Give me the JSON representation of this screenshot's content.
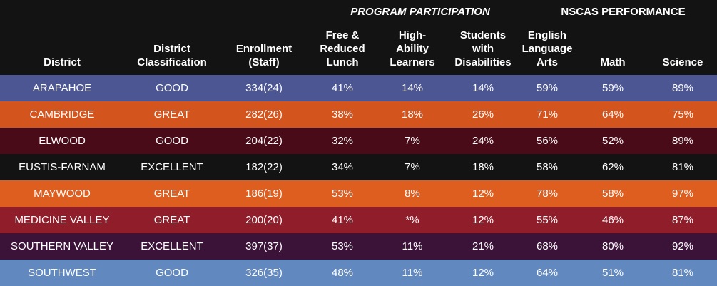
{
  "group_headers": {
    "program": "PROGRAM PARTICIPATION",
    "nscas": "NSCAS PERFORMANCE"
  },
  "columns": [
    "District",
    "District\nClassification",
    "Enrollment\n(Staff)",
    "Free &\nReduced\nLunch",
    "High-\nAbility\nLearners",
    "Students\nwith\nDisabilities",
    "English\nLanguage\nArts",
    "Math",
    "Science"
  ],
  "rows": [
    {
      "color": "#4c5693",
      "cells": [
        "ARAPAHOE",
        "GOOD",
        "334(24)",
        "41%",
        "14%",
        "14%",
        "59%",
        "59%",
        "89%"
      ]
    },
    {
      "color": "#d4541d",
      "cells": [
        "CAMBRIDGE",
        "GREAT",
        "282(26)",
        "38%",
        "18%",
        "26%",
        "71%",
        "64%",
        "75%"
      ]
    },
    {
      "color": "#4a0b18",
      "cells": [
        "ELWOOD",
        "GOOD",
        "204(22)",
        "32%",
        "7%",
        "24%",
        "56%",
        "52%",
        "89%"
      ]
    },
    {
      "color": "#131313",
      "cells": [
        "EUSTIS-FARNAM",
        "EXCELLENT",
        "182(22)",
        "34%",
        "7%",
        "18%",
        "58%",
        "62%",
        "81%"
      ]
    },
    {
      "color": "#dd5e1e",
      "cells": [
        "MAYWOOD",
        "GREAT",
        "186(19)",
        "53%",
        "8%",
        "12%",
        "78%",
        "58%",
        "97%"
      ]
    },
    {
      "color": "#8f1d2a",
      "cells": [
        "MEDICINE VALLEY",
        "GREAT",
        "200(20)",
        "41%",
        "*%",
        "12%",
        "55%",
        "46%",
        "87%"
      ]
    },
    {
      "color": "#3b1339",
      "cells": [
        "SOUTHERN VALLEY",
        "EXCELLENT",
        "397(37)",
        "53%",
        "11%",
        "21%",
        "68%",
        "80%",
        "92%"
      ]
    },
    {
      "color": "#6289bf",
      "cells": [
        "SOUTHWEST",
        "GOOD",
        "326(35)",
        "48%",
        "11%",
        "12%",
        "64%",
        "51%",
        "81%"
      ]
    }
  ]
}
